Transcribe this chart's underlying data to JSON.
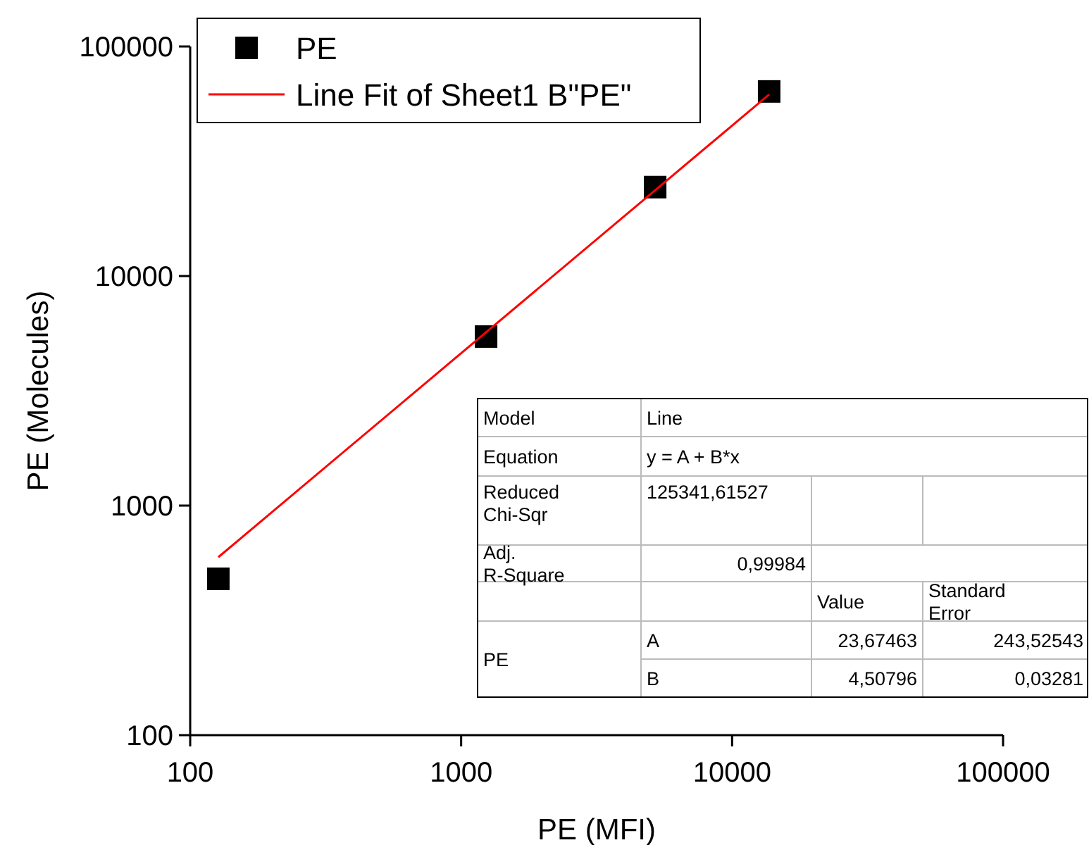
{
  "chart_data": {
    "type": "scatter",
    "xlabel": "PE (MFI)",
    "ylabel": "PE (Molecules)",
    "log": "xy",
    "xlim": [
      100,
      100000
    ],
    "ylim": [
      100,
      100000
    ],
    "xticks": [
      100,
      1000,
      10000,
      100000
    ],
    "yticks": [
      100,
      1000,
      10000,
      100000
    ],
    "grid": false,
    "legend": "top left",
    "series": [
      {
        "name": "PE",
        "marker": "square",
        "color": "#000000",
        "x": [
          127,
          1236,
          5200,
          13700
        ],
        "values": [
          480,
          5450,
          24400,
          63700
        ]
      },
      {
        "name": "Line Fit of Sheet1 B\"PE\"",
        "type": "line",
        "marker": "none",
        "color": "#ff0000",
        "x": [
          127,
          13700
        ],
        "values": [
          596,
          61780
        ]
      }
    ],
    "annotations": [
      "Model",
      "Line",
      "Equation",
      "y = A + B*x",
      "Reduced Chi-Sqr",
      "125341,61527",
      "Adj. R-Square",
      "0,99984",
      "Value",
      "Standard Error",
      "PE",
      "A",
      "23,67463",
      "243,52543",
      "B",
      "4,50796",
      "0,03281"
    ]
  }
}
